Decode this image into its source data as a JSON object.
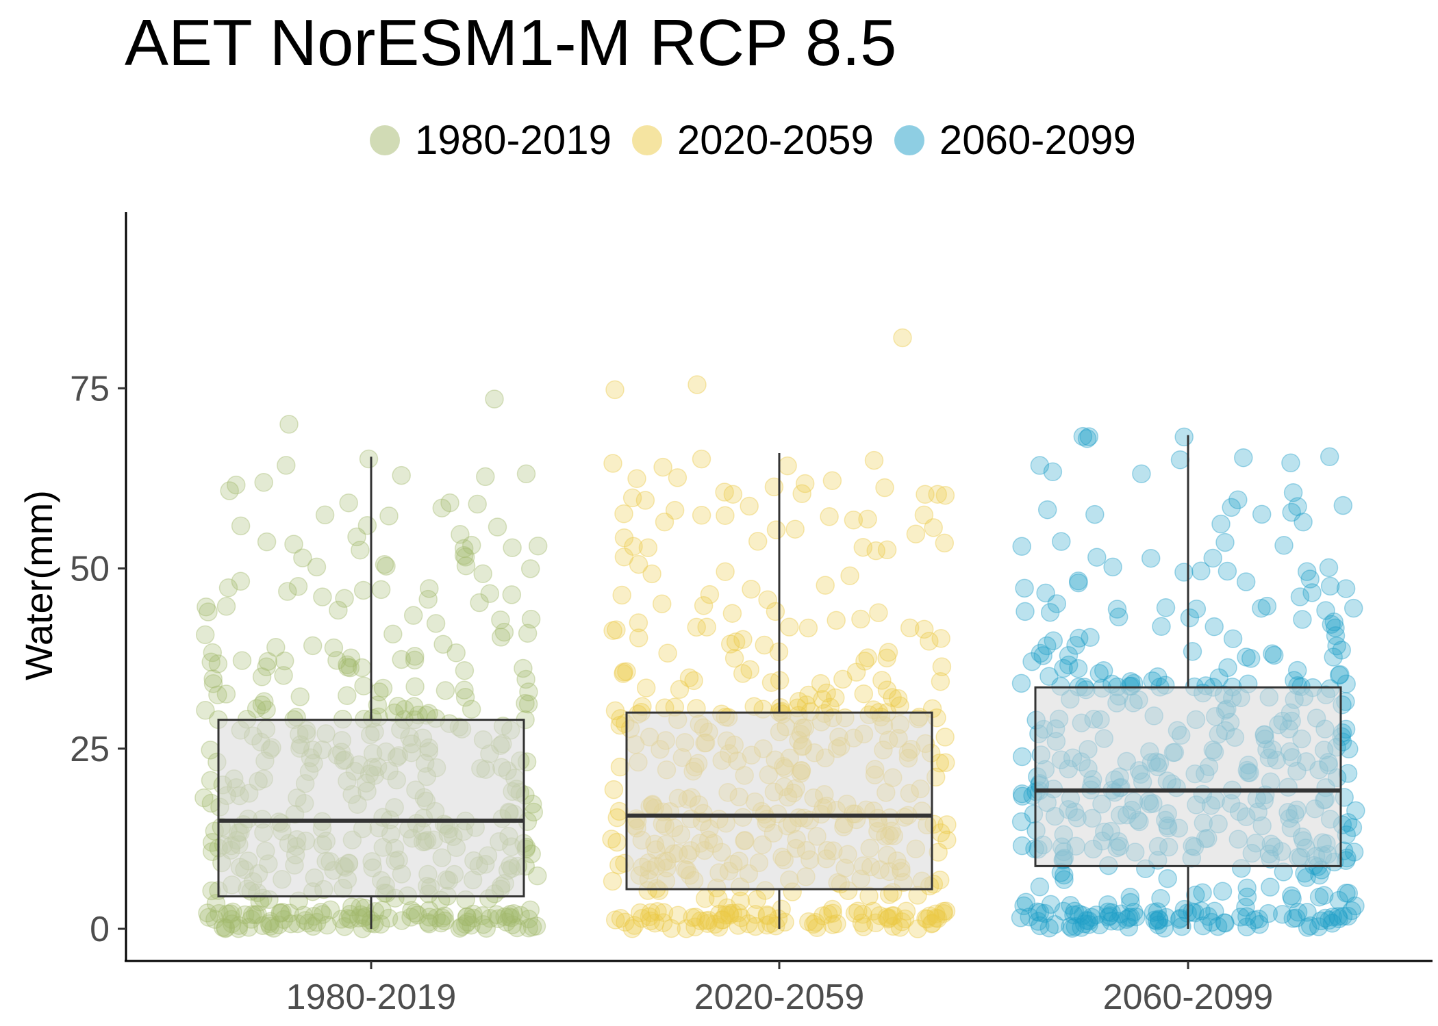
{
  "chart_data": {
    "type": "boxplot",
    "title": "AET NorESM1-M RCP 8.5",
    "xlabel": "",
    "ylabel": "Water(mm)",
    "ylim": [
      -6,
      99
    ],
    "y_ticks": [
      0,
      25,
      50,
      75
    ],
    "categories": [
      "1980-2019",
      "2020-2059",
      "2060-2099"
    ],
    "legend": {
      "position": "top",
      "entries": [
        "1980-2019",
        "2020-2059",
        "2060-2099"
      ]
    },
    "colors": [
      "#a3b86c",
      "#ebc944",
      "#1e9ec8"
    ],
    "grid": false,
    "boxes": [
      {
        "category": "1980-2019",
        "whisker_low": 0,
        "q1": 4.5,
        "median": 15,
        "q3": 29,
        "whisker_high": 65.5,
        "outliers": [
          70,
          73.5
        ]
      },
      {
        "category": "2020-2059",
        "whisker_low": 0,
        "q1": 5.5,
        "median": 15.7,
        "q3": 30,
        "whisker_high": 66,
        "outliers": [
          75.5,
          82,
          74.8
        ]
      },
      {
        "category": "2060-2099",
        "whisker_low": 0,
        "q1": 8.7,
        "median": 19.2,
        "q3": 33.5,
        "whisker_high": 68.5,
        "outliers": []
      }
    ],
    "points_note_values": "jittered individual observations, roughly 480 per period, spread between 0 and the whisker maximum"
  }
}
